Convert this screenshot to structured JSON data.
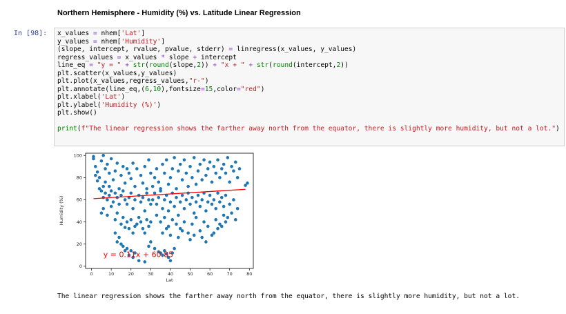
{
  "markdown": {
    "heading": "Northern Hemisphere - Humidity (%) vs. Latitude Linear Regression"
  },
  "cell": {
    "prompt": "In [98]:",
    "code_lines": [
      [
        [
          "x_values ",
          "t"
        ],
        [
          "=",
          "o"
        ],
        [
          " nhem[",
          "t"
        ],
        [
          "'Lat'",
          "s"
        ],
        [
          "]",
          "t"
        ]
      ],
      [
        [
          "y_values ",
          "t"
        ],
        [
          "=",
          "o"
        ],
        [
          " nhem[",
          "t"
        ],
        [
          "'Humidity'",
          "s"
        ],
        [
          "]",
          "t"
        ]
      ],
      [
        [
          "(slope, intercept, rvalue, pvalue, stderr) ",
          "t"
        ],
        [
          "=",
          "o"
        ],
        [
          " linregress(x_values, y_values)",
          "t"
        ]
      ],
      [
        [
          "regress_values ",
          "t"
        ],
        [
          "=",
          "o"
        ],
        [
          " x_values ",
          "t"
        ],
        [
          "*",
          "o"
        ],
        [
          " slope ",
          "t"
        ],
        [
          "+",
          "o"
        ],
        [
          " intercept",
          "t"
        ]
      ],
      [
        [
          "line_eq ",
          "t"
        ],
        [
          "=",
          "o"
        ],
        [
          " ",
          "t"
        ],
        [
          "\"y = \"",
          "s"
        ],
        [
          " ",
          "t"
        ],
        [
          "+",
          "o"
        ],
        [
          " ",
          "t"
        ],
        [
          "str",
          "n"
        ],
        [
          "(",
          "t"
        ],
        [
          "round",
          "n"
        ],
        [
          "(slope,",
          "t"
        ],
        [
          "2",
          "n"
        ],
        [
          ")) ",
          "t"
        ],
        [
          "+",
          "o"
        ],
        [
          " ",
          "t"
        ],
        [
          "\"x + \"",
          "s"
        ],
        [
          " ",
          "t"
        ],
        [
          "+",
          "o"
        ],
        [
          " ",
          "t"
        ],
        [
          "str",
          "n"
        ],
        [
          "(",
          "t"
        ],
        [
          "round",
          "n"
        ],
        [
          "(intercept,",
          "t"
        ],
        [
          "2",
          "n"
        ],
        [
          "))",
          "t"
        ]
      ],
      [
        [
          "plt.scatter(x_values,y_values)",
          "t"
        ]
      ],
      [
        [
          "plt.plot(x_values,regress_values,",
          "t"
        ],
        [
          "\"r-\"",
          "s"
        ],
        [
          ")",
          "t"
        ]
      ],
      [
        [
          "plt.annotate(line_eq,(",
          "t"
        ],
        [
          "6",
          "n"
        ],
        [
          ",",
          "t"
        ],
        [
          "10",
          "n"
        ],
        [
          "),fontsize",
          "t"
        ],
        [
          "=",
          "o"
        ],
        [
          "15",
          "n"
        ],
        [
          ",color",
          "t"
        ],
        [
          "=",
          "o"
        ],
        [
          "\"red\"",
          "s"
        ],
        [
          ")",
          "t"
        ]
      ],
      [
        [
          "plt.xlabel(",
          "t"
        ],
        [
          "'Lat'",
          "s"
        ],
        [
          ")",
          "t"
        ]
      ],
      [
        [
          "plt.ylabel(",
          "t"
        ],
        [
          "'Humidity (%)'",
          "s"
        ],
        [
          ")",
          "t"
        ]
      ],
      [
        [
          "plt.show()",
          "t"
        ]
      ],
      [],
      [
        [
          "print",
          "n"
        ],
        [
          "(",
          "t"
        ],
        [
          "f\"The linear regression shows the farther away north from the equator, there is slightly more humidity, but not a lot.\"",
          "s"
        ],
        [
          ")",
          "t"
        ]
      ]
    ],
    "output_text": "The linear regression shows the farther away north from the equator, there is slightly more humidity, but not a lot."
  },
  "colors": {
    "point": "#1f77b4",
    "line": "#ff0000",
    "annotation": "#ff0000"
  },
  "chart_data": {
    "type": "scatter",
    "xlabel": "Lat",
    "ylabel": "Humidity (%)",
    "xlim": [
      -3,
      82
    ],
    "ylim": [
      -2,
      102
    ],
    "xticks": [
      0,
      10,
      20,
      30,
      40,
      50,
      60,
      70,
      80
    ],
    "yticks": [
      0,
      20,
      40,
      60,
      80,
      100
    ],
    "regression": {
      "slope": 0.11,
      "intercept": 60.85,
      "x_range": [
        1,
        78
      ]
    },
    "annotation": {
      "text": "y = 0.11x + 60.85",
      "x": 6,
      "y": 10
    },
    "points": [
      [
        1,
        99
      ],
      [
        1,
        97
      ],
      [
        2,
        90
      ],
      [
        3,
        85
      ],
      [
        2,
        82
      ],
      [
        4,
        80
      ],
      [
        3,
        77
      ],
      [
        5,
        95
      ],
      [
        6,
        100
      ],
      [
        7,
        88
      ],
      [
        7,
        76
      ],
      [
        8,
        92
      ],
      [
        9,
        84
      ],
      [
        10,
        97
      ],
      [
        9,
        72
      ],
      [
        11,
        78
      ],
      [
        12,
        86
      ],
      [
        13,
        93
      ],
      [
        14,
        70
      ],
      [
        15,
        82
      ],
      [
        16,
        90
      ],
      [
        17,
        75
      ],
      [
        18,
        88
      ],
      [
        19,
        84
      ],
      [
        20,
        79
      ],
      [
        21,
        93
      ],
      [
        22,
        72
      ],
      [
        23,
        88
      ],
      [
        25,
        82
      ],
      [
        26,
        75
      ],
      [
        27,
        90
      ],
      [
        28,
        70
      ],
      [
        29,
        96
      ],
      [
        30,
        84
      ],
      [
        4,
        70
      ],
      [
        5,
        68
      ],
      [
        6,
        72
      ],
      [
        7,
        66
      ],
      [
        8,
        60
      ],
      [
        6,
        62
      ],
      [
        9,
        64
      ],
      [
        10,
        68
      ],
      [
        11,
        58
      ],
      [
        12,
        66
      ],
      [
        13,
        62
      ],
      [
        14,
        56
      ],
      [
        15,
        64
      ],
      [
        16,
        68
      ],
      [
        17,
        60
      ],
      [
        18,
        56
      ],
      [
        19,
        62
      ],
      [
        20,
        66
      ],
      [
        21,
        52
      ],
      [
        22,
        60
      ],
      [
        24,
        64
      ],
      [
        25,
        58
      ],
      [
        26,
        62
      ],
      [
        27,
        50
      ],
      [
        28,
        66
      ],
      [
        29,
        60
      ],
      [
        30,
        56
      ],
      [
        5,
        48
      ],
      [
        6,
        52
      ],
      [
        8,
        46
      ],
      [
        10,
        54
      ],
      [
        12,
        42
      ],
      [
        13,
        48
      ],
      [
        15,
        38
      ],
      [
        16,
        44
      ],
      [
        17,
        35
      ],
      [
        18,
        40
      ],
      [
        19,
        34
      ],
      [
        20,
        42
      ],
      [
        21,
        30
      ],
      [
        22,
        36
      ],
      [
        23,
        38
      ],
      [
        24,
        44
      ],
      [
        25,
        40
      ],
      [
        26,
        34
      ],
      [
        27,
        30
      ],
      [
        28,
        42
      ],
      [
        29,
        36
      ],
      [
        30,
        40
      ],
      [
        12,
        30
      ],
      [
        13,
        22
      ],
      [
        15,
        20
      ],
      [
        14,
        26
      ],
      [
        16,
        18
      ],
      [
        17,
        14
      ],
      [
        18,
        16
      ],
      [
        19,
        10
      ],
      [
        20,
        14
      ],
      [
        21,
        8
      ],
      [
        22,
        12
      ],
      [
        24,
        5
      ],
      [
        27,
        4
      ],
      [
        29,
        18
      ],
      [
        30,
        22
      ],
      [
        32,
        16
      ],
      [
        34,
        13
      ],
      [
        35,
        12
      ],
      [
        36,
        10
      ],
      [
        37,
        14
      ],
      [
        38,
        11
      ],
      [
        39,
        8
      ],
      [
        40,
        5
      ],
      [
        41,
        12
      ],
      [
        42,
        16
      ],
      [
        31,
        72
      ],
      [
        32,
        80
      ],
      [
        33,
        88
      ],
      [
        34,
        76
      ],
      [
        35,
        70
      ],
      [
        36,
        92
      ],
      [
        37,
        84
      ],
      [
        38,
        96
      ],
      [
        39,
        74
      ],
      [
        40,
        80
      ],
      [
        41,
        88
      ],
      [
        42,
        98
      ],
      [
        43,
        70
      ],
      [
        44,
        86
      ],
      [
        45,
        92
      ],
      [
        46,
        78
      ],
      [
        47,
        96
      ],
      [
        48,
        84
      ],
      [
        49,
        72
      ],
      [
        50,
        90
      ],
      [
        51,
        80
      ],
      [
        52,
        98
      ],
      [
        53,
        74
      ],
      [
        54,
        86
      ],
      [
        55,
        92
      ],
      [
        56,
        78
      ],
      [
        57,
        96
      ],
      [
        58,
        82
      ],
      [
        59,
        88
      ],
      [
        60,
        94
      ],
      [
        61,
        76
      ],
      [
        62,
        90
      ],
      [
        63,
        84
      ],
      [
        64,
        96
      ],
      [
        65,
        80
      ],
      [
        66,
        88
      ],
      [
        67,
        92
      ],
      [
        68,
        84
      ],
      [
        69,
        98
      ],
      [
        70,
        76
      ],
      [
        71,
        90
      ],
      [
        72,
        86
      ],
      [
        73,
        94
      ],
      [
        74,
        80
      ],
      [
        75,
        88
      ],
      [
        78,
        73
      ],
      [
        79,
        75
      ],
      [
        31,
        60
      ],
      [
        32,
        66
      ],
      [
        33,
        56
      ],
      [
        34,
        62
      ],
      [
        35,
        68
      ],
      [
        36,
        52
      ],
      [
        37,
        60
      ],
      [
        38,
        64
      ],
      [
        39,
        50
      ],
      [
        40,
        58
      ],
      [
        41,
        66
      ],
      [
        42,
        54
      ],
      [
        43,
        62
      ],
      [
        44,
        46
      ],
      [
        45,
        58
      ],
      [
        46,
        64
      ],
      [
        47,
        52
      ],
      [
        48,
        60
      ],
      [
        49,
        66
      ],
      [
        50,
        56
      ],
      [
        51,
        62
      ],
      [
        52,
        48
      ],
      [
        53,
        58
      ],
      [
        54,
        64
      ],
      [
        55,
        54
      ],
      [
        56,
        60
      ],
      [
        57,
        66
      ],
      [
        58,
        50
      ],
      [
        59,
        58
      ],
      [
        60,
        64
      ],
      [
        61,
        56
      ],
      [
        62,
        60
      ],
      [
        63,
        52
      ],
      [
        64,
        66
      ],
      [
        65,
        58
      ],
      [
        66,
        62
      ],
      [
        67,
        54
      ],
      [
        68,
        64
      ],
      [
        70,
        56
      ],
      [
        72,
        60
      ],
      [
        74,
        52
      ],
      [
        33,
        46
      ],
      [
        35,
        40
      ],
      [
        37,
        44
      ],
      [
        39,
        36
      ],
      [
        41,
        42
      ],
      [
        43,
        38
      ],
      [
        45,
        34
      ],
      [
        47,
        40
      ],
      [
        49,
        30
      ],
      [
        51,
        38
      ],
      [
        53,
        44
      ],
      [
        55,
        32
      ],
      [
        57,
        40
      ],
      [
        59,
        36
      ],
      [
        61,
        28
      ],
      [
        63,
        42
      ],
      [
        65,
        38
      ],
      [
        67,
        46
      ],
      [
        69,
        44
      ],
      [
        71,
        48
      ],
      [
        73,
        42
      ],
      [
        36,
        30
      ],
      [
        38,
        34
      ],
      [
        40,
        28
      ],
      [
        44,
        26
      ],
      [
        46,
        32
      ],
      [
        50,
        24
      ],
      [
        52,
        28
      ],
      [
        56,
        26
      ],
      [
        58,
        22
      ],
      [
        62,
        30
      ],
      [
        64,
        34
      ],
      [
        66,
        36
      ],
      [
        68,
        40
      ]
    ]
  }
}
